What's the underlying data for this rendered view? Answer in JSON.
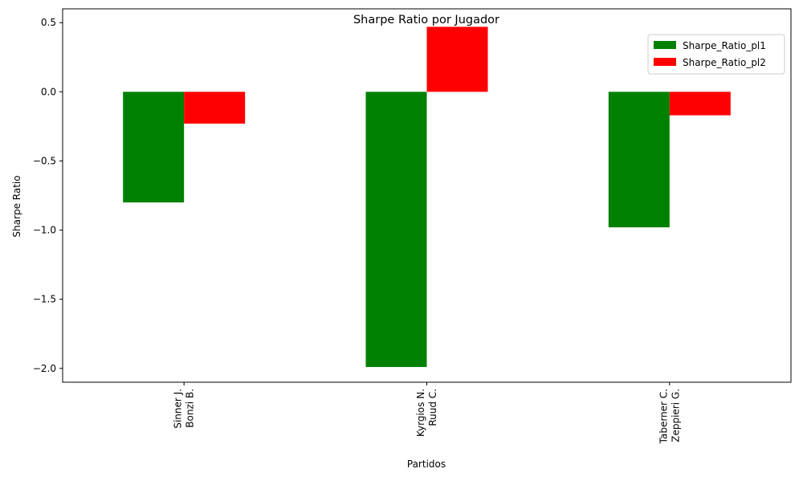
{
  "chart_data": {
    "type": "bar",
    "title": "Sharpe Ratio por Jugador",
    "xlabel": "Partidos",
    "ylabel": "Sharpe Ratio",
    "categories": [
      [
        "Sinner J.",
        "Bonzi B."
      ],
      [
        "Kyrgios N.",
        "Ruud C."
      ],
      [
        "Taberner C.",
        "Zeppieri G."
      ]
    ],
    "series": [
      {
        "name": "Sharpe_Ratio_pl1",
        "color": "#008000",
        "values": [
          -0.8,
          -1.99,
          -0.98
        ]
      },
      {
        "name": "Sharpe_Ratio_pl2",
        "color": "#ff0000",
        "values": [
          -0.23,
          0.47,
          -0.17
        ]
      }
    ],
    "ylim": [
      -2.1,
      0.6
    ],
    "yticks": [
      0.5,
      0.0,
      -0.5,
      -1.0,
      -1.5,
      -2.0
    ],
    "ytick_labels": [
      "0.5",
      "0.0",
      "−0.5",
      "−1.0",
      "−1.5",
      "−2.0"
    ],
    "grid": false,
    "legend_position": "top-right"
  }
}
